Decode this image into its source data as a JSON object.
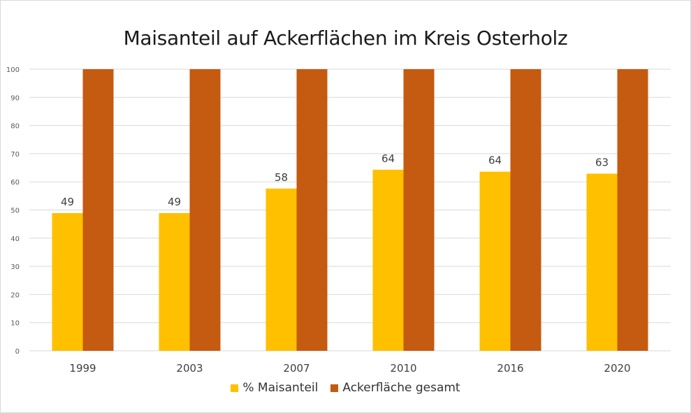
{
  "chart_data": {
    "type": "bar",
    "title": "Maisanteil auf Ackerflächen im Kreis Osterholz",
    "xlabel": "",
    "ylabel": "",
    "ylim": [
      0,
      100
    ],
    "yticks": [
      0,
      10,
      20,
      30,
      40,
      50,
      60,
      70,
      80,
      90,
      100
    ],
    "grid": true,
    "legend_position": "bottom",
    "categories": [
      "1999",
      "2003",
      "2007",
      "2010",
      "2016",
      "2020"
    ],
    "series": [
      {
        "name": "% Maisanteil",
        "color": "#ffc000",
        "values": [
          48.9,
          48.9,
          57.6,
          64.3,
          63.6,
          62.9
        ],
        "data_labels": [
          "49",
          "49",
          "58",
          "64",
          "64",
          "63"
        ]
      },
      {
        "name": "Ackerfläche gesamt",
        "color": "#c55a11",
        "values": [
          100,
          100,
          100,
          100,
          100,
          100
        ]
      }
    ]
  }
}
